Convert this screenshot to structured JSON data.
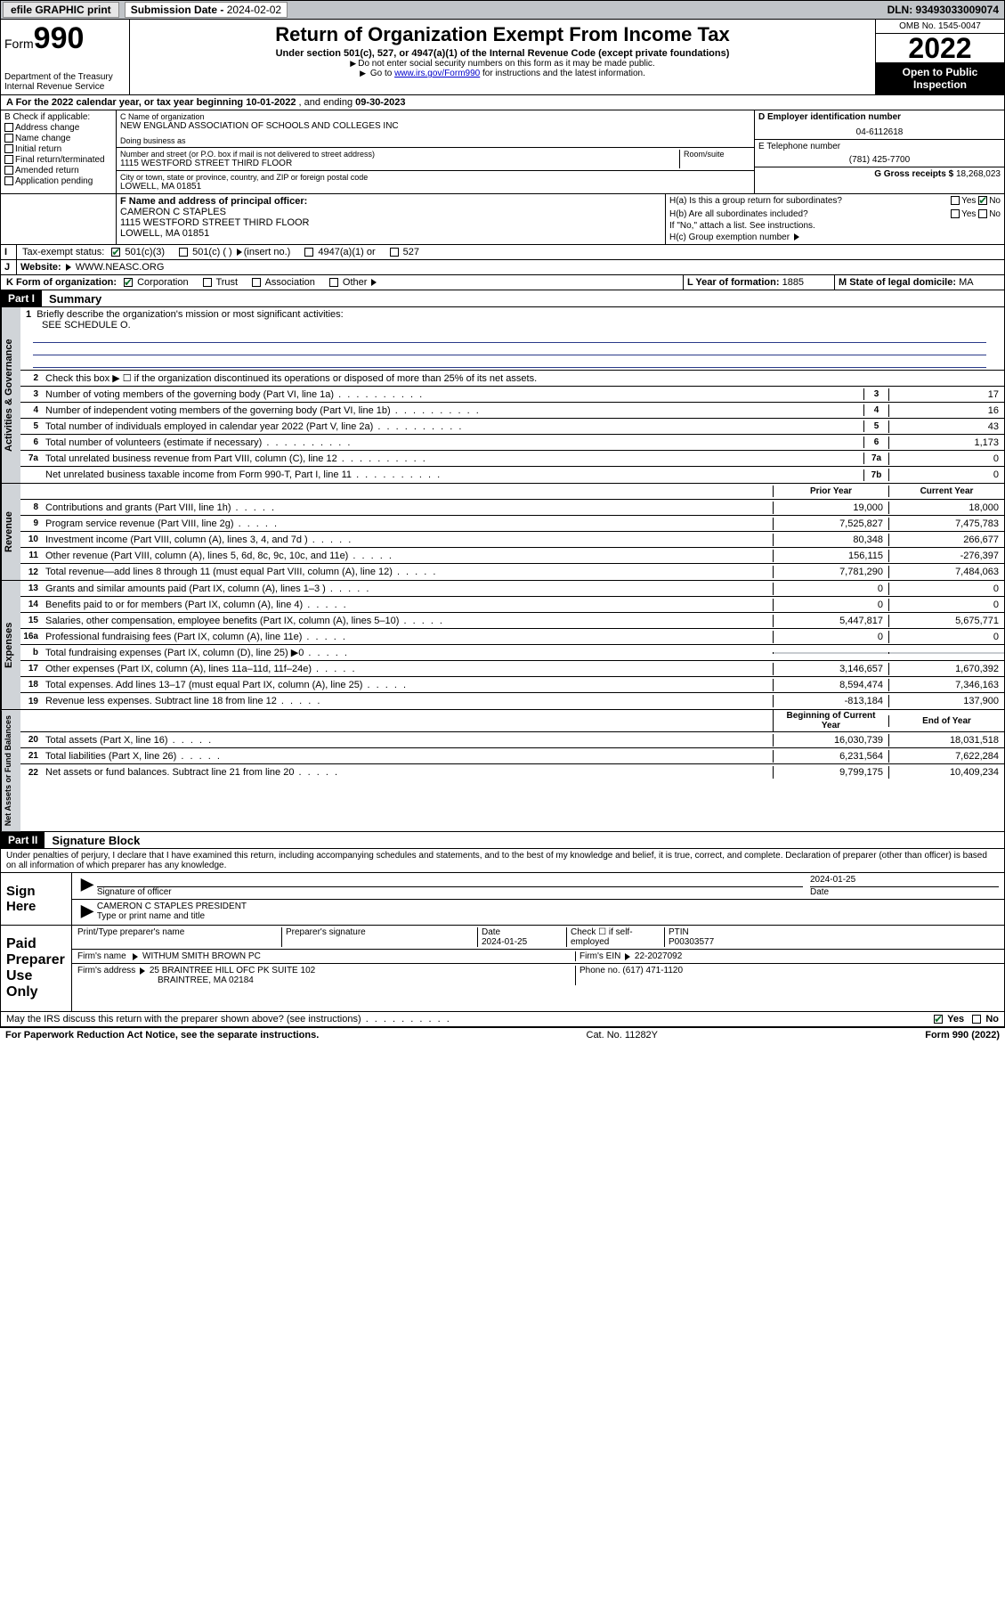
{
  "topbar": {
    "efile": "efile GRAPHIC print",
    "subdate_lbl": "Submission Date - ",
    "subdate": "2024-02-02",
    "dln": "DLN: 93493033009074"
  },
  "header": {
    "form": "Form",
    "num": "990",
    "dept": "Department of the Treasury",
    "irs": "Internal Revenue Service",
    "title": "Return of Organization Exempt From Income Tax",
    "sub1": "Under section 501(c), 527, or 4947(a)(1) of the Internal Revenue Code (except private foundations)",
    "sub2": "Do not enter social security numbers on this form as it may be made public.",
    "sub3a": "Go to ",
    "sub3_link": "www.irs.gov/Form990",
    "sub3b": " for instructions and the latest information.",
    "omb": "OMB No. 1545-0047",
    "year": "2022",
    "inspect": "Open to Public Inspection"
  },
  "lineA": {
    "pre": "A For the 2022 calendar year, or tax year beginning ",
    "begin": "10-01-2022",
    "mid": " , and ending ",
    "end": "09-30-2023"
  },
  "B": {
    "hdr": "B Check if applicable:",
    "opts": [
      "Address change",
      "Name change",
      "Initial return",
      "Final return/terminated",
      "Amended return",
      "Application pending"
    ]
  },
  "C": {
    "lbl": "C Name of organization",
    "name": "NEW ENGLAND ASSOCIATION OF SCHOOLS AND COLLEGES INC",
    "dba_lbl": "Doing business as",
    "addr_lbl": "Number and street (or P.O. box if mail is not delivered to street address)",
    "room_lbl": "Room/suite",
    "addr": "1115 WESTFORD STREET THIRD FLOOR",
    "city_lbl": "City or town, state or province, country, and ZIP or foreign postal code",
    "city": "LOWELL, MA  01851"
  },
  "D": {
    "lbl": "D Employer identification number",
    "val": "04-6112618"
  },
  "E": {
    "lbl": "E Telephone number",
    "val": "(781) 425-7700"
  },
  "G": {
    "lbl": "G Gross receipts $",
    "val": "18,268,023"
  },
  "F": {
    "lbl": "F Name and address of principal officer:",
    "name": "CAMERON C STAPLES",
    "addr1": "1115 WESTFORD STREET THIRD FLOOR",
    "addr2": "LOWELL, MA  01851"
  },
  "H": {
    "a": "H(a)  Is this a group return for subordinates?",
    "b": "H(b)  Are all subordinates included?",
    "b2": "If \"No,\" attach a list. See instructions.",
    "c": "H(c)  Group exemption number",
    "yes": "Yes",
    "no": "No"
  },
  "I": {
    "lbl": "Tax-exempt status:",
    "o1": "501(c)(3)",
    "o2": "501(c) (  )",
    "o2b": "(insert no.)",
    "o3": "4947(a)(1) or",
    "o4": "527"
  },
  "J": {
    "lbl": "Website:",
    "val": "WWW.NEASC.ORG"
  },
  "K": {
    "lbl": "K Form of organization:",
    "o1": "Corporation",
    "o2": "Trust",
    "o3": "Association",
    "o4": "Other"
  },
  "L": {
    "lbl": "L Year of formation:",
    "val": "1885"
  },
  "M": {
    "lbl": "M State of legal domicile:",
    "val": "MA"
  },
  "part1": {
    "bar": "Part I",
    "title": "Summary",
    "l1": "Briefly describe the organization's mission or most significant activities:",
    "l1v": "SEE SCHEDULE O.",
    "l2": "Check this box ▶ ☐  if the organization discontinued its operations or disposed of more than 25% of its net assets.",
    "lines": [
      {
        "n": "3",
        "t": "Number of voting members of the governing body (Part VI, line 1a)",
        "b": "3",
        "v": "17"
      },
      {
        "n": "4",
        "t": "Number of independent voting members of the governing body (Part VI, line 1b)",
        "b": "4",
        "v": "16"
      },
      {
        "n": "5",
        "t": "Total number of individuals employed in calendar year 2022 (Part V, line 2a)",
        "b": "5",
        "v": "43"
      },
      {
        "n": "6",
        "t": "Total number of volunteers (estimate if necessary)",
        "b": "6",
        "v": "1,173"
      },
      {
        "n": "7a",
        "t": "Total unrelated business revenue from Part VIII, column (C), line 12",
        "b": "7a",
        "v": "0"
      },
      {
        "n": "",
        "t": "Net unrelated business taxable income from Form 990-T, Part I, line 11",
        "b": "7b",
        "v": "0"
      }
    ],
    "col_prior": "Prior Year",
    "col_curr": "Current Year",
    "rev": [
      {
        "n": "8",
        "t": "Contributions and grants (Part VIII, line 1h)",
        "p": "19,000",
        "c": "18,000"
      },
      {
        "n": "9",
        "t": "Program service revenue (Part VIII, line 2g)",
        "p": "7,525,827",
        "c": "7,475,783"
      },
      {
        "n": "10",
        "t": "Investment income (Part VIII, column (A), lines 3, 4, and 7d )",
        "p": "80,348",
        "c": "266,677"
      },
      {
        "n": "11",
        "t": "Other revenue (Part VIII, column (A), lines 5, 6d, 8c, 9c, 10c, and 11e)",
        "p": "156,115",
        "c": "-276,397"
      },
      {
        "n": "12",
        "t": "Total revenue—add lines 8 through 11 (must equal Part VIII, column (A), line 12)",
        "p": "7,781,290",
        "c": "7,484,063"
      }
    ],
    "exp": [
      {
        "n": "13",
        "t": "Grants and similar amounts paid (Part IX, column (A), lines 1–3 )",
        "p": "0",
        "c": "0"
      },
      {
        "n": "14",
        "t": "Benefits paid to or for members (Part IX, column (A), line 4)",
        "p": "0",
        "c": "0"
      },
      {
        "n": "15",
        "t": "Salaries, other compensation, employee benefits (Part IX, column (A), lines 5–10)",
        "p": "5,447,817",
        "c": "5,675,771"
      },
      {
        "n": "16a",
        "t": "Professional fundraising fees (Part IX, column (A), line 11e)",
        "p": "0",
        "c": "0"
      },
      {
        "n": "b",
        "t": "Total fundraising expenses (Part IX, column (D), line 25) ▶0",
        "p": "",
        "c": "",
        "shade": true
      },
      {
        "n": "17",
        "t": "Other expenses (Part IX, column (A), lines 11a–11d, 11f–24e)",
        "p": "3,146,657",
        "c": "1,670,392"
      },
      {
        "n": "18",
        "t": "Total expenses. Add lines 13–17 (must equal Part IX, column (A), line 25)",
        "p": "8,594,474",
        "c": "7,346,163"
      },
      {
        "n": "19",
        "t": "Revenue less expenses. Subtract line 18 from line 12",
        "p": "-813,184",
        "c": "137,900"
      }
    ],
    "col_beg": "Beginning of Current Year",
    "col_end": "End of Year",
    "net": [
      {
        "n": "20",
        "t": "Total assets (Part X, line 16)",
        "p": "16,030,739",
        "c": "18,031,518"
      },
      {
        "n": "21",
        "t": "Total liabilities (Part X, line 26)",
        "p": "6,231,564",
        "c": "7,622,284"
      },
      {
        "n": "22",
        "t": "Net assets or fund balances. Subtract line 21 from line 20",
        "p": "9,799,175",
        "c": "10,409,234"
      }
    ],
    "tabs": {
      "gov": "Activities & Governance",
      "rev": "Revenue",
      "exp": "Expenses",
      "net": "Net Assets or Fund Balances"
    }
  },
  "part2": {
    "bar": "Part II",
    "title": "Signature Block",
    "decl": "Under penalties of perjury, I declare that I have examined this return, including accompanying schedules and statements, and to the best of my knowledge and belief, it is true, correct, and complete. Declaration of preparer (other than officer) is based on all information of which preparer has any knowledge."
  },
  "sign": {
    "here": "Sign Here",
    "sig_lbl": "Signature of officer",
    "date_lbl": "Date",
    "date": "2024-01-25",
    "name": "CAMERON C STAPLES PRESIDENT",
    "name_lbl": "Type or print name and title"
  },
  "paid": {
    "lbl": "Paid Preparer Use Only",
    "c1": "Print/Type preparer's name",
    "c2": "Preparer's signature",
    "c3": "Date",
    "c3v": "2024-01-25",
    "c4": "Check ☐ if self-employed",
    "c5": "PTIN",
    "c5v": "P00303577",
    "firm_lbl": "Firm's name",
    "firm": "WITHUM SMITH BROWN PC",
    "ein_lbl": "Firm's EIN",
    "ein": "22-2027092",
    "addr_lbl": "Firm's address",
    "addr": "25 BRAINTREE HILL OFC PK SUITE 102",
    "addr2": "BRAINTREE, MA  02184",
    "ph_lbl": "Phone no.",
    "ph": "(617) 471-1120"
  },
  "discuss": {
    "txt": "May the IRS discuss this return with the preparer shown above? (see instructions)",
    "yes": "Yes",
    "no": "No"
  },
  "footer": {
    "l": "For Paperwork Reduction Act Notice, see the separate instructions.",
    "m": "Cat. No. 11282Y",
    "r": "Form 990 (2022)"
  }
}
